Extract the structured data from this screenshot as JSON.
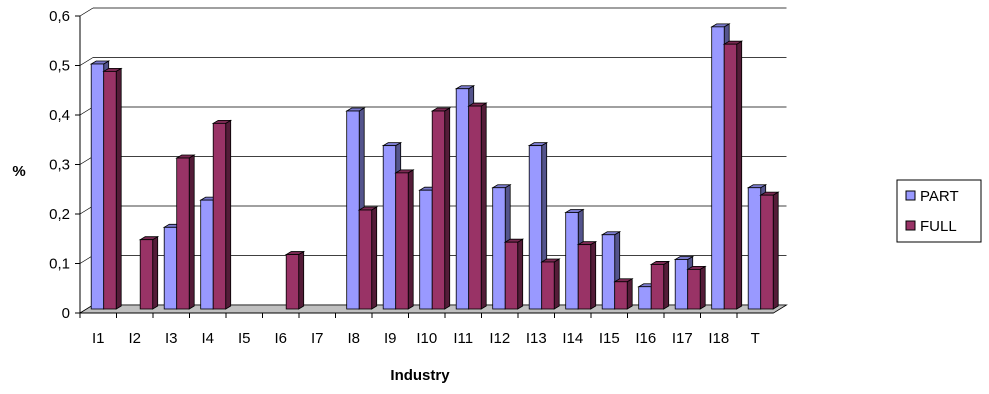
{
  "chart_data": {
    "type": "bar",
    "title": "",
    "xlabel": "Industry",
    "ylabel": "%",
    "ylim": [
      0,
      0.6
    ],
    "yticks": [
      "0",
      "0,1",
      "0,2",
      "0,3",
      "0,4",
      "0,5",
      "0,6"
    ],
    "categories": [
      "I1",
      "I2",
      "I3",
      "I4",
      "I5",
      "I6",
      "I7",
      "I8",
      "I9",
      "I10",
      "I11",
      "I12",
      "I13",
      "I14",
      "I15",
      "I16",
      "I17",
      "I18",
      "T"
    ],
    "series": [
      {
        "name": "PART",
        "color": "#9999ff",
        "values": [
          0.495,
          0,
          0.165,
          0.22,
          0,
          0,
          0,
          0.4,
          0.33,
          0.24,
          0.445,
          0.245,
          0.33,
          0.195,
          0.15,
          0.045,
          0.1,
          0.57,
          0.245
        ]
      },
      {
        "name": "FULL",
        "color": "#993366",
        "values": [
          0.48,
          0.14,
          0.305,
          0.375,
          0,
          0.11,
          0,
          0.2,
          0.275,
          0.4,
          0.41,
          0.135,
          0.095,
          0.13,
          0.055,
          0.09,
          0.08,
          0.535,
          0.23
        ]
      }
    ],
    "grid": true,
    "legend_position": "right"
  }
}
